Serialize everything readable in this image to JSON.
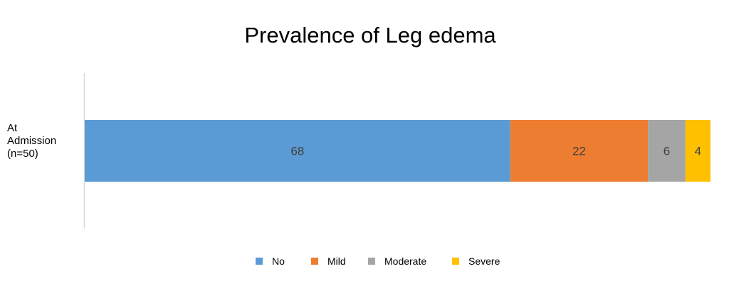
{
  "chart_data": {
    "type": "bar",
    "orientation": "horizontal",
    "stacked": true,
    "title": "Prevalence of Leg edema",
    "categories": [
      "At Admission (n=50)"
    ],
    "category_label_lines": [
      "At",
      "Admission",
      "(n=50)"
    ],
    "series": [
      {
        "name": "No",
        "values": [
          68
        ],
        "color": "#5B9BD5"
      },
      {
        "name": "Mild",
        "values": [
          22
        ],
        "color": "#ED7D31"
      },
      {
        "name": "Moderate",
        "values": [
          6
        ],
        "color": "#A5A5A5"
      },
      {
        "name": "Severe",
        "values": [
          4
        ],
        "color": "#FFC000"
      }
    ],
    "xlim": [
      0,
      100
    ],
    "grid": false,
    "legend_position": "bottom"
  }
}
